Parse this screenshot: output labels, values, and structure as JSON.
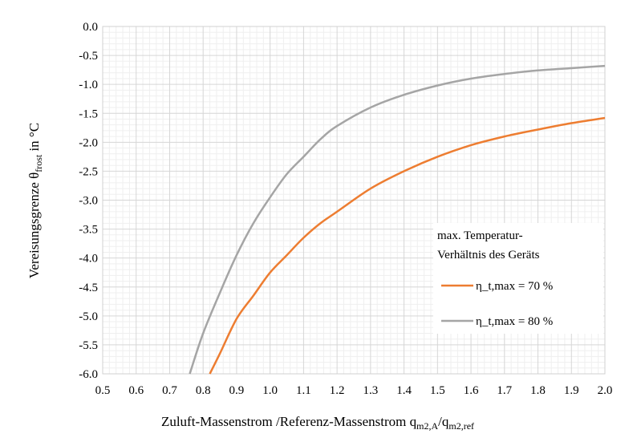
{
  "chart_data": {
    "type": "line",
    "title": "",
    "xlabel": {
      "text": "Zuluft-Massenstrom /Referenz-Massenstrom q",
      "sub1": "m2,A",
      "mid": "/q",
      "sub2": "m2,ref"
    },
    "ylabel": {
      "text": "Vereisungsgrenze θ",
      "sub": "frost",
      "suffix": " in °C"
    },
    "xlim": [
      0.5,
      2.0
    ],
    "ylim": [
      -6.0,
      0.0
    ],
    "x_ticks": [
      "0.5",
      "0.6",
      "0.7",
      "0.8",
      "0.9",
      "1.0",
      "1.1",
      "1.2",
      "1.3",
      "1.4",
      "1.5",
      "1.6",
      "1.7",
      "1.8",
      "1.9",
      "2.0"
    ],
    "y_ticks": [
      "0.0",
      "-0.5",
      "-1.0",
      "-1.5",
      "-2.0",
      "-2.5",
      "-3.0",
      "-3.5",
      "-4.0",
      "-4.5",
      "-5.0",
      "-5.5",
      "-6.0"
    ],
    "grid": true,
    "legend": {
      "title_line1": "max. Temperatur-",
      "title_line2": "Verhältnis des Geräts",
      "placement": "right"
    },
    "series": [
      {
        "name": "η_t,max = 70 %",
        "color": "#ed7d31",
        "x": [
          0.82,
          0.85,
          0.9,
          0.95,
          1.0,
          1.05,
          1.1,
          1.15,
          1.2,
          1.3,
          1.4,
          1.5,
          1.6,
          1.7,
          1.8,
          1.9,
          2.0
        ],
        "y": [
          -6.0,
          -5.65,
          -5.05,
          -4.65,
          -4.25,
          -3.95,
          -3.65,
          -3.4,
          -3.2,
          -2.8,
          -2.5,
          -2.25,
          -2.05,
          -1.9,
          -1.78,
          -1.67,
          -1.58
        ]
      },
      {
        "name": "η_t,max = 80 %",
        "color": "#a5a5a5",
        "x": [
          0.76,
          0.8,
          0.85,
          0.9,
          0.95,
          1.0,
          1.05,
          1.1,
          1.15,
          1.2,
          1.3,
          1.4,
          1.5,
          1.6,
          1.7,
          1.8,
          1.9,
          2.0
        ],
        "y": [
          -6.0,
          -5.3,
          -4.6,
          -3.95,
          -3.4,
          -2.95,
          -2.55,
          -2.25,
          -1.95,
          -1.72,
          -1.4,
          -1.18,
          -1.02,
          -0.9,
          -0.82,
          -0.76,
          -0.72,
          -0.68
        ]
      }
    ]
  }
}
